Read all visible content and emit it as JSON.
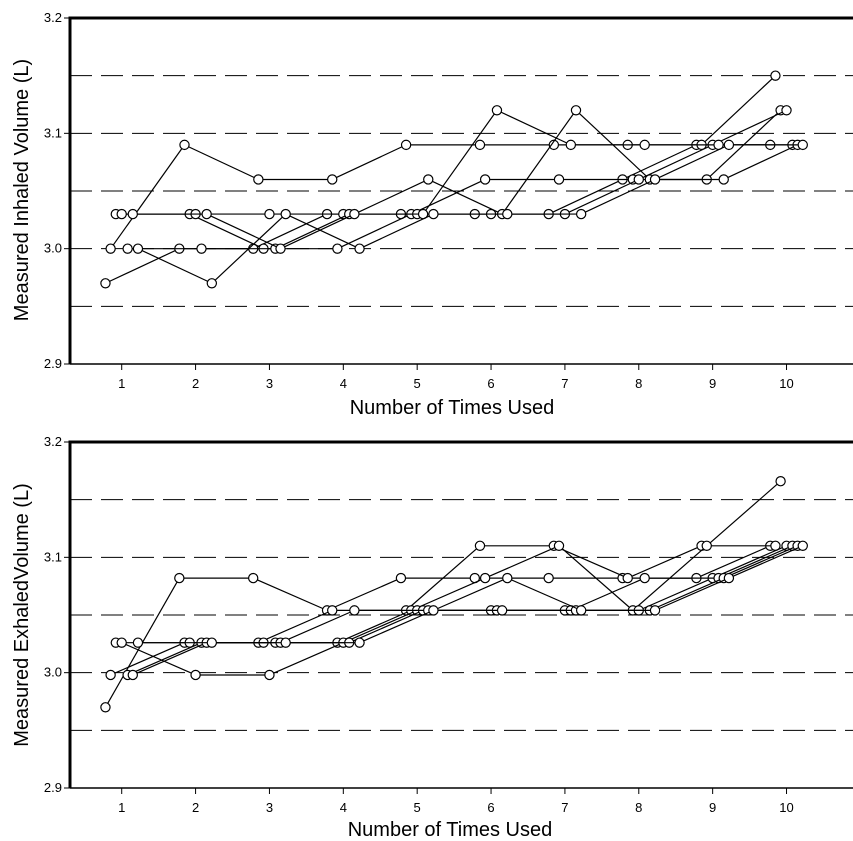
{
  "chart_data": [
    {
      "type": "scatter",
      "title": "",
      "xlabel": "Number of Times Used",
      "ylabel": "Measured Inhaled Volume (L)",
      "xlim": [
        0.3,
        10.9
      ],
      "ylim": [
        2.9,
        3.2
      ],
      "x_ticks": [
        "1",
        "2",
        "3",
        "4",
        "5",
        "6",
        "7",
        "8",
        "9",
        "10"
      ],
      "y_ticks": [
        "2.9",
        "3.0",
        "3.1",
        "3.2"
      ],
      "reference_lines": [
        2.95,
        3.0,
        3.05,
        3.1,
        3.15
      ],
      "grid": false,
      "series": [
        {
          "x": [
            1,
            2,
            3,
            4,
            5,
            6,
            7,
            8,
            9,
            10
          ],
          "y": [
            2.97,
            3.0,
            3.0,
            3.03,
            3.03,
            3.03,
            3.03,
            3.06,
            3.09,
            3.09
          ]
        },
        {
          "x": [
            1,
            2,
            3,
            4,
            5,
            6,
            7,
            8,
            9,
            10
          ],
          "y": [
            3.0,
            3.09,
            3.06,
            3.06,
            3.09,
            3.09,
            3.09,
            3.09,
            3.09,
            3.15
          ]
        },
        {
          "x": [
            1,
            2,
            3,
            4,
            5,
            6,
            7,
            8,
            9,
            10
          ],
          "y": [
            3.03,
            3.03,
            3.0,
            3.0,
            3.03,
            3.06,
            3.06,
            3.06,
            3.06,
            3.12
          ]
        },
        {
          "x": [
            1,
            2,
            3,
            4,
            5,
            6,
            7,
            8,
            9,
            10
          ],
          "y": [
            3.03,
            3.03,
            3.03,
            3.03,
            3.03,
            3.03,
            3.03,
            3.06,
            3.09,
            3.12
          ]
        },
        {
          "x": [
            1,
            2,
            3,
            4,
            5,
            6,
            7,
            8,
            9,
            10
          ],
          "y": [
            3.0,
            3.0,
            3.0,
            3.03,
            3.03,
            3.12,
            3.09,
            3.09,
            3.09,
            3.09
          ]
        },
        {
          "x": [
            1,
            2,
            3,
            4,
            5,
            6,
            7,
            8,
            9,
            10
          ],
          "y": [
            3.03,
            3.03,
            3.0,
            3.03,
            3.06,
            3.03,
            3.12,
            3.06,
            3.06,
            3.09
          ]
        },
        {
          "x": [
            1,
            2,
            3,
            4,
            5,
            6,
            7,
            8,
            9,
            10
          ],
          "y": [
            3.0,
            2.97,
            3.03,
            3.0,
            3.03,
            3.03,
            3.03,
            3.06,
            3.09,
            3.09
          ]
        }
      ]
    },
    {
      "type": "scatter",
      "title": "",
      "xlabel": "Number of Times Used",
      "ylabel": "Measured ExhaledVolume (L)",
      "xlim": [
        0.3,
        10.9
      ],
      "ylim": [
        2.9,
        3.2
      ],
      "x_ticks": [
        "1",
        "2",
        "3",
        "4",
        "5",
        "6",
        "7",
        "8",
        "9",
        "10"
      ],
      "y_ticks": [
        "2.9",
        "3.0",
        "3.1",
        "3.2"
      ],
      "reference_lines": [
        2.95,
        3.0,
        3.05,
        3.1,
        3.15
      ],
      "grid": false,
      "series": [
        {
          "x": [
            1,
            2,
            3,
            4,
            5,
            6,
            7,
            8,
            9,
            10
          ],
          "y": [
            2.97,
            3.082,
            3.082,
            3.054,
            3.082,
            3.082,
            3.082,
            3.082,
            3.082,
            3.11
          ]
        },
        {
          "x": [
            1,
            2,
            3,
            4,
            5,
            6,
            7,
            8,
            9,
            10
          ],
          "y": [
            2.998,
            3.026,
            3.026,
            3.054,
            3.054,
            3.11,
            3.11,
            3.082,
            3.11,
            3.11
          ]
        },
        {
          "x": [
            1,
            2,
            3,
            4,
            5,
            6,
            7,
            8,
            9,
            10
          ],
          "y": [
            3.026,
            3.026,
            3.026,
            3.026,
            3.054,
            3.082,
            3.11,
            3.054,
            3.11,
            3.166
          ]
        },
        {
          "x": [
            1,
            2,
            3,
            4,
            5,
            6,
            7,
            8,
            9,
            10
          ],
          "y": [
            3.026,
            2.998,
            2.998,
            3.026,
            3.054,
            3.054,
            3.054,
            3.054,
            3.082,
            3.11
          ]
        },
        {
          "x": [
            1,
            2,
            3,
            4,
            5,
            6,
            7,
            8,
            9,
            10
          ],
          "y": [
            2.998,
            3.026,
            3.026,
            3.026,
            3.054,
            3.054,
            3.054,
            3.082,
            3.082,
            3.11
          ]
        },
        {
          "x": [
            1,
            2,
            3,
            4,
            5,
            6,
            7,
            8,
            9,
            10
          ],
          "y": [
            2.998,
            3.026,
            3.026,
            3.054,
            3.054,
            3.054,
            3.054,
            3.054,
            3.082,
            3.11
          ]
        },
        {
          "x": [
            1,
            2,
            3,
            4,
            5,
            6,
            7,
            8,
            9,
            10
          ],
          "y": [
            3.026,
            3.026,
            3.026,
            3.026,
            3.054,
            3.082,
            3.054,
            3.054,
            3.082,
            3.11
          ]
        }
      ]
    }
  ]
}
